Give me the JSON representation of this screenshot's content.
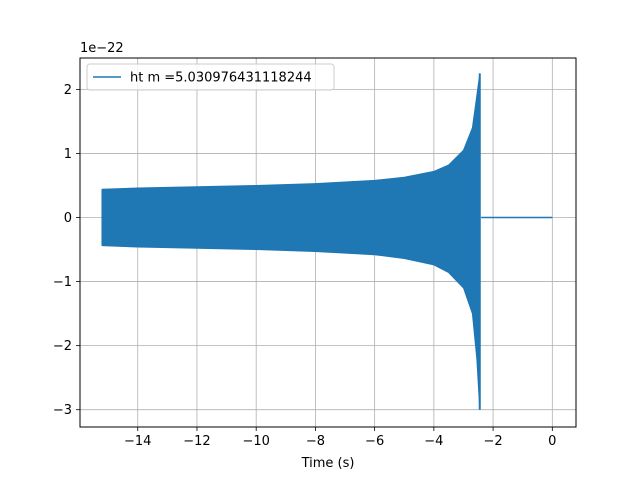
{
  "chart_data": {
    "type": "line",
    "title": "",
    "xlabel": "Time (s)",
    "ylabel": "",
    "y_multiplier": "1e−22",
    "xlim": [
      -15.95,
      0.8
    ],
    "ylim": [
      -3.27,
      2.49
    ],
    "x_ticks": [
      -14,
      -12,
      -10,
      -8,
      -6,
      -4,
      -2,
      0
    ],
    "x_tick_labels": [
      "−14",
      "−12",
      "−10",
      "−8",
      "−6",
      "−4",
      "−2",
      "0"
    ],
    "y_ticks": [
      -3,
      -2,
      -1,
      0,
      1,
      2
    ],
    "y_tick_labels": [
      "−3",
      "−2",
      "−1",
      "0",
      "1",
      "2"
    ],
    "grid": true,
    "legend_position": "top-left",
    "series": [
      {
        "name": "ht m =5.030976431118244",
        "color": "#1f77b4",
        "envelope_upper": {
          "x": [
            -15.2,
            -14,
            -12,
            -10,
            -8,
            -6,
            -5,
            -4,
            -3.5,
            -3.0,
            -2.7,
            -2.55,
            -2.45
          ],
          "y": [
            0.44,
            0.46,
            0.48,
            0.5,
            0.53,
            0.58,
            0.63,
            0.72,
            0.82,
            1.05,
            1.4,
            1.9,
            2.25
          ]
        },
        "envelope_lower": {
          "x": [
            -15.2,
            -14,
            -12,
            -10,
            -8,
            -6,
            -5,
            -4,
            -3.5,
            -3.0,
            -2.7,
            -2.55,
            -2.45
          ],
          "y": [
            -0.44,
            -0.46,
            -0.48,
            -0.5,
            -0.53,
            -0.58,
            -0.64,
            -0.74,
            -0.86,
            -1.1,
            -1.5,
            -2.2,
            -3.0
          ]
        },
        "flat_after": {
          "x": [
            -2.4,
            0
          ],
          "y": [
            0,
            0
          ]
        }
      }
    ]
  }
}
